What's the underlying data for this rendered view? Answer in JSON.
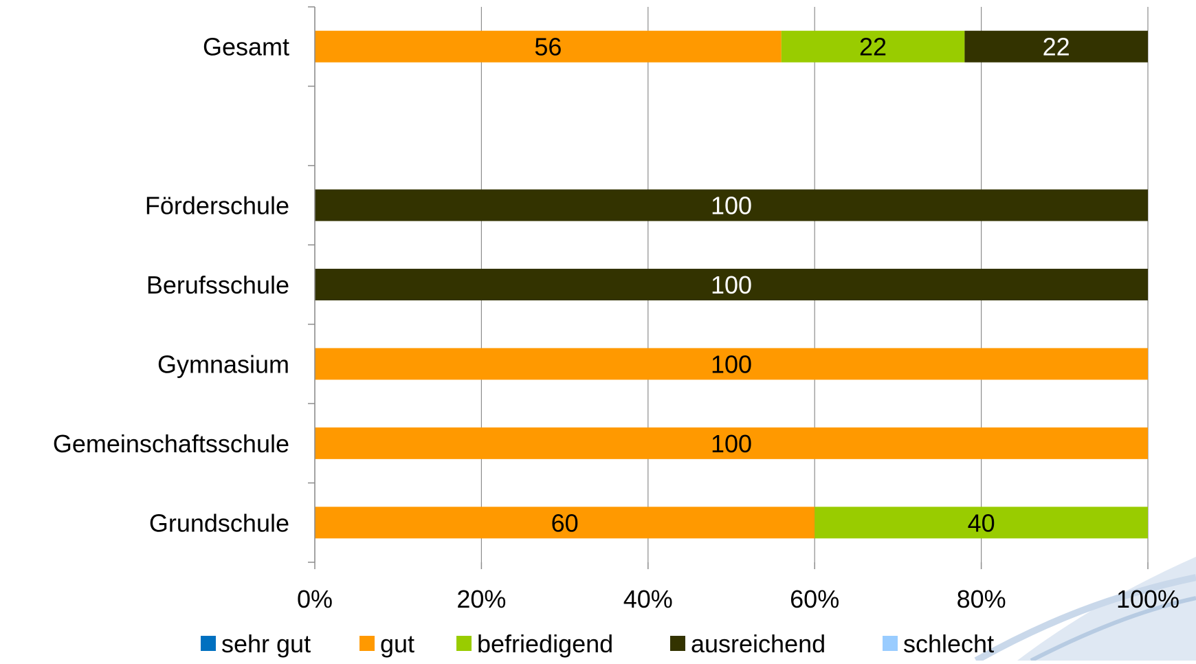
{
  "chart_data": {
    "type": "bar",
    "orientation": "horizontal",
    "stacked": "percent",
    "categories": [
      "Gesamt",
      "",
      "Förderschule",
      "Berufsschule",
      "Gymnasium",
      "Gemeinschaftsschule",
      "Grundschule"
    ],
    "series": [
      {
        "name": "sehr gut",
        "color": "#0070c0",
        "values": [
          0,
          null,
          0,
          0,
          0,
          0,
          0
        ]
      },
      {
        "name": "gut",
        "color": "#ff9900",
        "values": [
          56,
          null,
          0,
          0,
          100,
          100,
          60
        ]
      },
      {
        "name": "befriedigend",
        "color": "#99cc00",
        "values": [
          22,
          null,
          0,
          0,
          0,
          0,
          40
        ]
      },
      {
        "name": "ausreichend",
        "color": "#333300",
        "values": [
          22,
          null,
          100,
          100,
          0,
          0,
          0
        ]
      },
      {
        "name": "schlecht",
        "color": "#99ccff",
        "values": [
          0,
          null,
          0,
          0,
          0,
          0,
          0
        ]
      }
    ],
    "xlim": [
      0,
      100
    ],
    "x_ticks": [
      "0%",
      "20%",
      "40%",
      "60%",
      "80%",
      "100%"
    ],
    "grid": "vertical",
    "legend": "bottom",
    "data_labels": true
  }
}
